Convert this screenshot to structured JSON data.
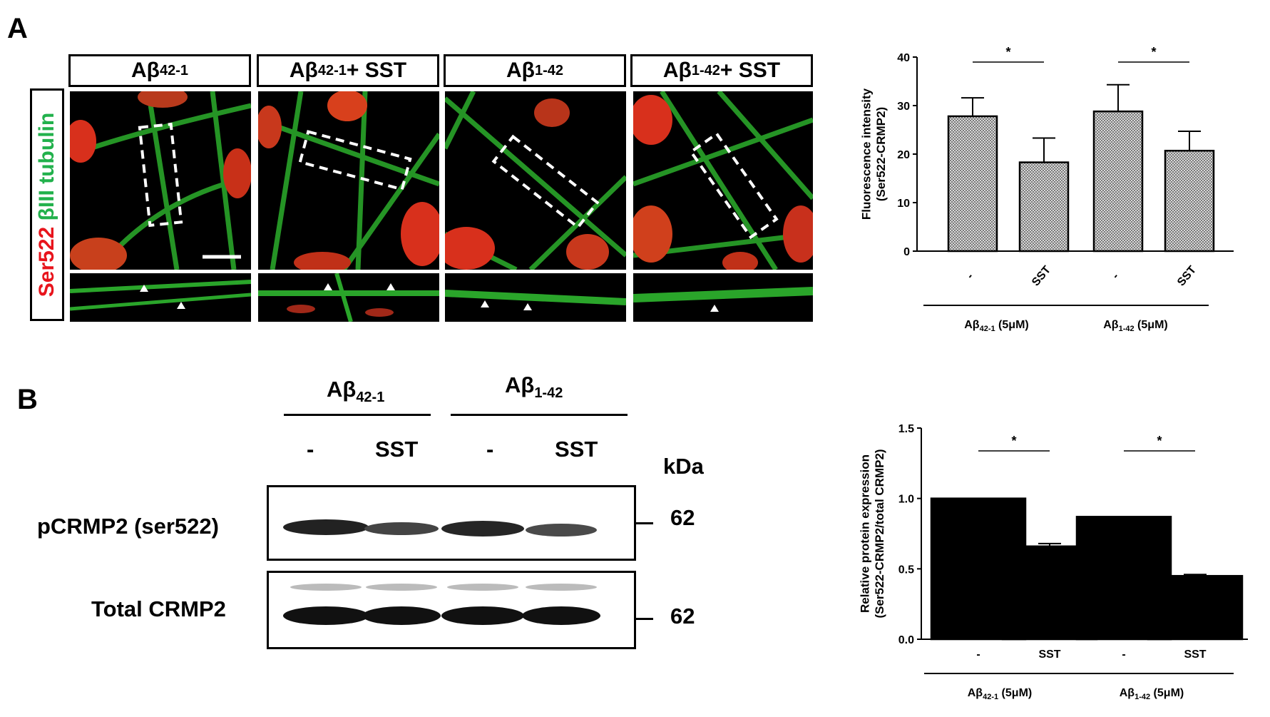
{
  "panel_a": {
    "letter": "A",
    "side_label": {
      "part1": "Ser522",
      "part2": "βIII tubulin"
    },
    "headers": [
      {
        "main": "Aβ",
        "sub": "42-1",
        "suffix": ""
      },
      {
        "main": "Aβ",
        "sub": "42-1",
        "suffix": " + SST"
      },
      {
        "main": "Aβ",
        "sub": "1-42",
        "suffix": ""
      },
      {
        "main": "Aβ",
        "sub": "1-42",
        "suffix": " + SST"
      }
    ]
  },
  "panel_b": {
    "letter": "B",
    "groups": [
      {
        "main": "Aβ",
        "sub": "42-1"
      },
      {
        "main": "Aβ",
        "sub": "1-42"
      }
    ],
    "lanes": [
      "-",
      "SST",
      "-",
      "SST"
    ],
    "kda_label": "kDa",
    "rows": [
      {
        "label": "pCRMP2 (ser522)",
        "marker": "62"
      },
      {
        "label": "Total CRMP2",
        "marker": "62"
      }
    ]
  },
  "chart_data": [
    {
      "type": "bar",
      "categories": [
        "-",
        "SST",
        "-",
        "SST"
      ],
      "values": [
        27.8,
        18.3,
        28.8,
        20.7
      ],
      "errors": [
        3.8,
        5.0,
        5.5,
        4.0
      ],
      "ylabel": "Fluorescence intensity (Ser522-CRMP2)",
      "ylim": [
        0,
        40
      ],
      "yticks": [
        0,
        10,
        20,
        30,
        40
      ],
      "groups": [
        "Aβ42-1 (5μM)",
        "Aβ1-42 (5μM)"
      ],
      "significance": [
        "*",
        "*"
      ],
      "fill": "hatched-gray"
    },
    {
      "type": "bar",
      "categories": [
        "-",
        "SST",
        "-",
        "SST"
      ],
      "values": [
        1.0,
        0.66,
        0.87,
        0.45
      ],
      "errors": [
        0.0,
        0.02,
        0.0,
        0.01
      ],
      "ylabel": "Relative protein expression (Ser522-CRMP2/total CRMP2)",
      "ylim": [
        0,
        1.5
      ],
      "yticks": [
        "0.0",
        "0.5",
        "1.0",
        "1.5"
      ],
      "groups": [
        "Aβ42-1 (5μM)",
        "Aβ1-42 (5μM)"
      ],
      "significance": [
        "*",
        "*"
      ],
      "fill": "#000000"
    }
  ],
  "colors": {
    "red": "#e8141c",
    "green": "#22b14c"
  }
}
